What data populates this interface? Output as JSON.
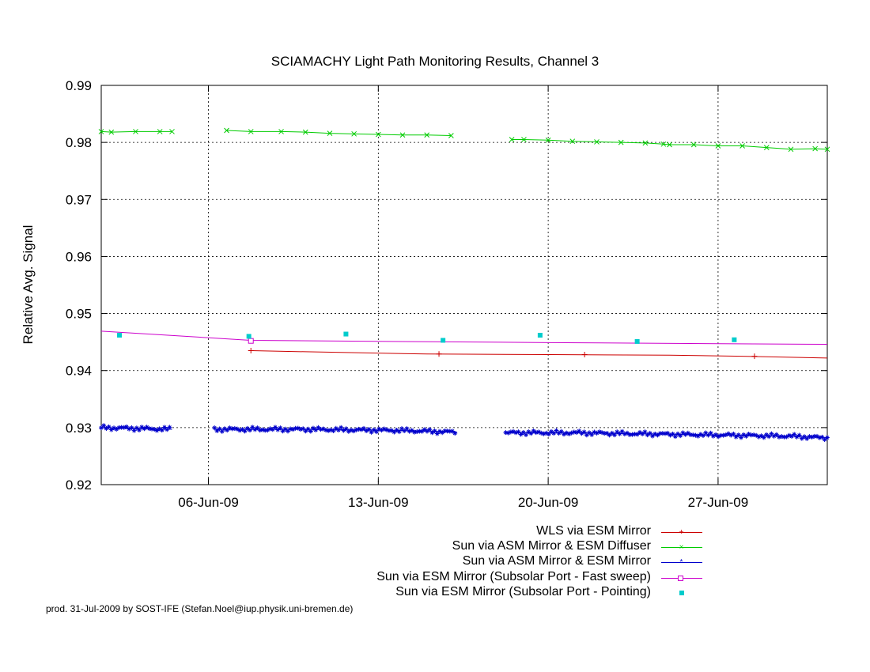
{
  "chart_data": {
    "type": "line",
    "title": "SCIAMACHY Light Path Monitoring Results, Channel 3",
    "xlabel": "",
    "ylabel": "Relative Avg. Signal",
    "x_ticks": [
      "06-Jun-09",
      "13-Jun-09",
      "20-Jun-09",
      "27-Jun-09"
    ],
    "x_tick_dates": [
      "2009-06-06",
      "2009-06-13",
      "2009-06-20",
      "2009-06-27"
    ],
    "xlim": [
      "2009-06-01T14:00",
      "2009-07-01T12:00"
    ],
    "y_ticks": [
      "0.92",
      "0.93",
      "0.94",
      "0.95",
      "0.96",
      "0.97",
      "0.98",
      "0.99"
    ],
    "ylim": [
      0.92,
      0.99
    ],
    "grid": true,
    "grid_style": "dotted",
    "legend_position": "below-right",
    "series": [
      {
        "name": "WLS via ESM Mirror",
        "color": "#cc0000",
        "marker": "plus",
        "segments": [
          [
            [
              "2009-06-07T18:00",
              0.9435
            ],
            [
              "2009-06-10",
              0.9433
            ],
            [
              "2009-06-15",
              0.9429
            ],
            [
              "2009-06-20",
              0.9428
            ],
            [
              "2009-06-25",
              0.9427
            ],
            [
              "2009-06-28",
              0.9425
            ],
            [
              "2009-07-01T12:00",
              0.9422
            ]
          ]
        ],
        "markers": [
          [
            "2009-06-07T18:00",
            0.9435
          ],
          [
            "2009-06-15T12:00",
            0.9429
          ],
          [
            "2009-06-21T12:00",
            0.9428
          ],
          [
            "2009-06-28T12:00",
            0.9425
          ]
        ]
      },
      {
        "name": "Sun via ASM Mirror & ESM Diffuser",
        "color": "#00cc00",
        "marker": "x",
        "segments": [
          [
            [
              "2009-06-01T14:00",
              0.9819
            ],
            [
              "2009-06-02",
              0.9818
            ],
            [
              "2009-06-03",
              0.9819
            ],
            [
              "2009-06-04",
              0.9819
            ],
            [
              "2009-06-04T12:00",
              0.9819
            ]
          ],
          [
            [
              "2009-06-06T18:00",
              0.9821
            ],
            [
              "2009-06-07T18:00",
              0.9819
            ],
            [
              "2009-06-09",
              0.9819
            ],
            [
              "2009-06-10",
              0.9818
            ],
            [
              "2009-06-11",
              0.9816
            ],
            [
              "2009-06-12",
              0.9815
            ],
            [
              "2009-06-13",
              0.9814
            ],
            [
              "2009-06-14",
              0.9813
            ],
            [
              "2009-06-15",
              0.9813
            ],
            [
              "2009-06-16",
              0.9812
            ]
          ],
          [
            [
              "2009-06-18T12:00",
              0.9805
            ],
            [
              "2009-06-19",
              0.9805
            ],
            [
              "2009-06-20",
              0.9804
            ],
            [
              "2009-06-21",
              0.9802
            ],
            [
              "2009-06-22",
              0.9801
            ],
            [
              "2009-06-23",
              0.98
            ],
            [
              "2009-06-24",
              0.9799
            ],
            [
              "2009-06-24T18:00",
              0.9797
            ],
            [
              "2009-06-25",
              0.9796
            ],
            [
              "2009-06-26",
              0.9796
            ],
            [
              "2009-06-27",
              0.9794
            ],
            [
              "2009-06-28",
              0.9794
            ],
            [
              "2009-06-29",
              0.9791
            ],
            [
              "2009-06-30",
              0.9788
            ],
            [
              "2009-07-01",
              0.9789
            ],
            [
              "2009-07-01T12:00",
              0.9788
            ]
          ]
        ]
      },
      {
        "name": "Sun via ASM Mirror & ESM Mirror",
        "color": "#0000cc",
        "marker": "star",
        "segments": [
          [
            [
              "2009-06-01T14:00",
              0.93
            ],
            [
              "2009-06-04T12:00",
              0.9297
            ]
          ],
          [
            [
              "2009-06-06T06:00",
              0.9297
            ],
            [
              "2009-06-10",
              0.9297
            ],
            [
              "2009-06-14",
              0.9295
            ],
            [
              "2009-06-16T06:00",
              0.9292
            ]
          ],
          [
            [
              "2009-06-18T06:00",
              0.9291
            ],
            [
              "2009-06-21",
              0.9291
            ],
            [
              "2009-06-24",
              0.9289
            ],
            [
              "2009-06-27",
              0.9287
            ],
            [
              "2009-06-30",
              0.9285
            ],
            [
              "2009-07-01T12:00",
              0.9282
            ]
          ]
        ]
      },
      {
        "name": "Sun via ESM Mirror (Subsolar Port - Fast sweep)",
        "color": "#cc00cc",
        "marker": "square",
        "segments": [
          [
            [
              "2009-06-01T14:00",
              0.9469
            ],
            [
              "2009-06-07T18:00",
              0.9453
            ],
            [
              "2009-06-20",
              0.9449
            ],
            [
              "2009-07-01T12:00",
              0.9446
            ]
          ]
        ],
        "markers": [
          [
            "2009-06-07T18:00",
            0.9452
          ]
        ]
      },
      {
        "name": "Sun via ESM Mirror (Subsolar Port - Pointing)",
        "color": "#00cccc",
        "marker": "filled-square",
        "segments": [],
        "markers": [
          [
            "2009-06-02T08:00",
            0.9462
          ],
          [
            "2009-06-07T16:00",
            0.946
          ],
          [
            "2009-06-11T16:00",
            0.9464
          ],
          [
            "2009-06-15T16:00",
            0.9453
          ],
          [
            "2009-06-19T16:00",
            0.9462
          ],
          [
            "2009-06-23T16:00",
            0.9451
          ],
          [
            "2009-06-27T16:00",
            0.9454
          ]
        ]
      }
    ]
  },
  "footer": {
    "credit": "prod. 31-Jul-2009 by SOST-IFE (Stefan.Noel@iup.physik.uni-bremen.de)"
  }
}
